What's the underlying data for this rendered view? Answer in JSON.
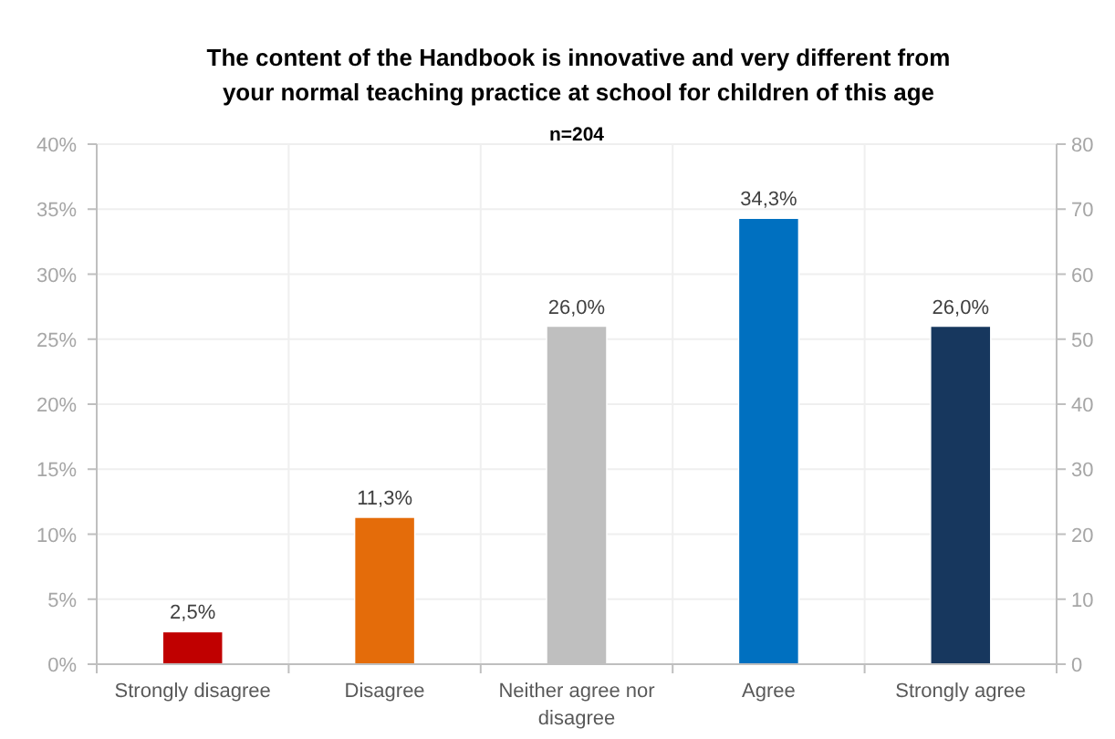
{
  "chart_data": {
    "type": "bar",
    "title": "The content of the Handbook is innovative and very different from your normal teaching practice at school for children of this age",
    "annotations": [
      "n=204"
    ],
    "categories": [
      "Strongly disagree",
      "Disagree",
      "Neither agree nor disagree",
      "Agree",
      "Strongly agree"
    ],
    "values": [
      2.5,
      11.3,
      26.0,
      34.3,
      26.0
    ],
    "colors": [
      "#c00000",
      "#e46c0a",
      "#bfbfbf",
      "#0070c0",
      "#17375e"
    ],
    "value_labels": [
      "2,5%",
      "11,3%",
      "26,0%",
      "34,3%",
      "26,0%"
    ],
    "ylim": [
      0,
      40
    ],
    "yticks": [
      {
        "value": 0,
        "label": "0%"
      },
      {
        "value": 5,
        "label": "5%"
      },
      {
        "value": 10,
        "label": "10%"
      },
      {
        "value": 15,
        "label": "15%"
      },
      {
        "value": 20,
        "label": "20%"
      },
      {
        "value": 25,
        "label": "25%"
      },
      {
        "value": 30,
        "label": "30%"
      },
      {
        "value": 35,
        "label": "35%"
      },
      {
        "value": 40,
        "label": "40%"
      }
    ],
    "y2lim": [
      0,
      80
    ],
    "y2ticks": [
      0,
      10,
      20,
      30,
      40,
      50,
      60,
      70,
      80
    ],
    "grid": true
  }
}
